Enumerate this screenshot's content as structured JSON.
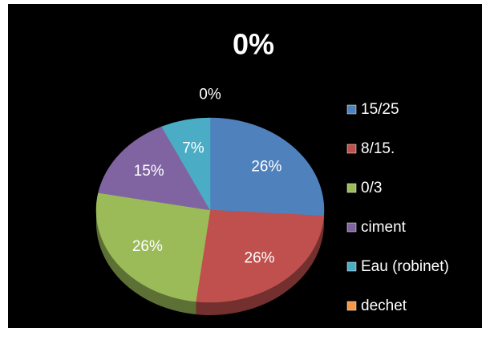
{
  "chart_data": {
    "type": "pie",
    "title": "0%",
    "categories": [
      "15/25",
      "8/15.",
      "0/3",
      "ciment",
      "Eau (robinet)",
      "dechet"
    ],
    "values": [
      26,
      26,
      26,
      15,
      7,
      0
    ],
    "value_labels": [
      "26%",
      "26%",
      "26%",
      "15%",
      "7%",
      "0%"
    ],
    "colors": [
      "#4f81bd",
      "#c0504d",
      "#9bbb59",
      "#8064a2",
      "#4bacc6",
      "#f79646"
    ],
    "legend": "right"
  }
}
